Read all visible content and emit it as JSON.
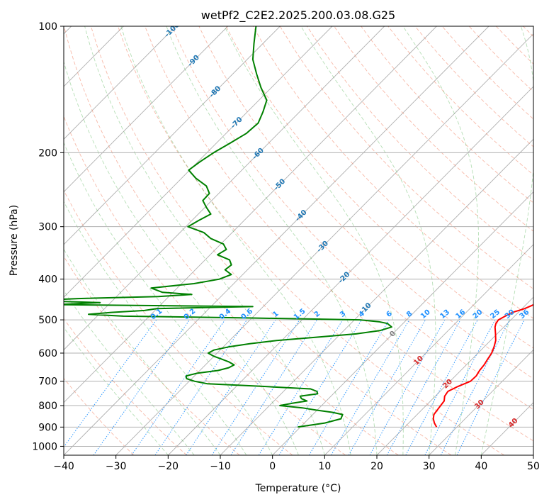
{
  "chart_data": {
    "type": "line",
    "title": "wetPf2_C2E2.2025.200.03.08.G25",
    "xlabel": "Temperature (°C)",
    "ylabel": "Pressure (hPa)",
    "xlim": [
      -40,
      50
    ],
    "ylim": [
      1050,
      100
    ],
    "y_scale": "log",
    "skew": true,
    "grid": true,
    "x_ticks": [
      -40,
      -30,
      -20,
      -10,
      0,
      10,
      20,
      30,
      40,
      50
    ],
    "y_ticks": [
      100,
      200,
      300,
      400,
      500,
      600,
      700,
      800,
      900,
      1000
    ],
    "series": [
      {
        "color": "#ff0000",
        "pressure": [
          900,
          880,
          860,
          840,
          820,
          800,
          780,
          760,
          740,
          720,
          700,
          680,
          660,
          640,
          620,
          600,
          580,
          560,
          540,
          520,
          510,
          500,
          495,
          490,
          480,
          470,
          460,
          450,
          440,
          430,
          420,
          410,
          400,
          390,
          380,
          370,
          360,
          350,
          340,
          330,
          320,
          300,
          280,
          260,
          250,
          240,
          230,
          220,
          200,
          180,
          170,
          160,
          150,
          140,
          130,
          120,
          110,
          100
        ],
        "values": [
          26.1,
          24.9,
          23.9,
          23.2,
          23.0,
          22.8,
          22.6,
          21.8,
          21.5,
          22.5,
          23.9,
          24.0,
          23.6,
          23.4,
          23.0,
          22.6,
          21.9,
          21.0,
          19.7,
          18.3,
          17.8,
          17.6,
          17.9,
          18.2,
          18.9,
          20.5,
          21.5,
          22.3,
          22.6,
          22.4,
          22.1,
          22.0,
          21.8,
          21.4,
          21.0,
          20.8,
          20.4,
          19.9,
          18.9,
          17.9,
          17.1,
          15.4,
          12.1,
          9.1,
          7.7,
          7.1,
          5.9,
          4.4,
          1.3,
          -2.6,
          -4.8,
          -6.7,
          -8.5,
          -10.4,
          -12.4,
          -15.0,
          -17.9,
          -20.8
        ]
      },
      {
        "color": "#008000",
        "pressure": [
          900,
          880,
          860,
          840,
          830,
          820,
          810,
          800,
          790,
          780,
          770,
          760,
          750,
          740,
          730,
          720,
          710,
          700,
          690,
          680,
          670,
          660,
          650,
          640,
          630,
          620,
          610,
          600,
          590,
          580,
          570,
          560,
          550,
          540,
          530,
          520,
          510,
          505,
          500,
          495,
          490,
          485,
          480,
          475,
          470,
          465,
          460,
          455,
          450,
          445,
          440,
          435,
          430,
          420,
          410,
          400,
          390,
          380,
          370,
          360,
          350,
          340,
          330,
          320,
          310,
          300,
          290,
          280,
          270,
          260,
          250,
          240,
          230,
          220,
          210,
          200,
          190,
          180,
          170,
          160,
          150,
          140,
          130,
          120,
          110,
          100
        ],
        "values": [
          -0.5,
          3.9,
          6.2,
          5.7,
          3.3,
          -0.2,
          -3.3,
          -8.0,
          -6.1,
          -3.7,
          -5.2,
          -5.9,
          -3.0,
          -3.6,
          -5.3,
          -15.0,
          -26.0,
          -29.0,
          -31.0,
          -31.6,
          -30.0,
          -26.5,
          -25.0,
          -24.5,
          -26.0,
          -28.0,
          -30.1,
          -31.7,
          -31.2,
          -29.0,
          -25.5,
          -21.0,
          -14.0,
          -7.0,
          -3.0,
          -1.5,
          -3.0,
          -5.0,
          -9.0,
          -30.0,
          -55.0,
          -62.0,
          -58.0,
          -52.0,
          -50.0,
          -32.0,
          -70.0,
          -62.0,
          -75.0,
          -67.0,
          -52.0,
          -46.0,
          -52.0,
          -55.0,
          -47.6,
          -43.6,
          -42.2,
          -44.3,
          -44.0,
          -45.3,
          -48.6,
          -47.9,
          -49.5,
          -53.0,
          -55.4,
          -59.6,
          -58.7,
          -57.6,
          -59.7,
          -61.7,
          -61.8,
          -63.8,
          -67.3,
          -70.2,
          -69.6,
          -68.7,
          -67.4,
          -66.1,
          -65.8,
          -67.0,
          -68.5,
          -72.0,
          -75.4,
          -78.9,
          -81.7,
          -84.6
        ]
      }
    ],
    "isotherm_labels": [
      -100,
      -90,
      -80,
      -70,
      -60,
      -50,
      -40,
      -30,
      -20,
      -10
    ],
    "mixing_ratio_labels": [
      "0.1",
      "0.2",
      "0.4",
      "0.6",
      "1",
      "1.5",
      "2",
      "3",
      "4",
      "6",
      "8",
      "10",
      "13",
      "16",
      "20",
      "25",
      "30",
      "36"
    ],
    "dry_adiabat_labels": [
      "0",
      "10",
      "20",
      "30",
      "40"
    ]
  },
  "colors": {
    "temperature": "#ff0000",
    "dewpoint": "#008000",
    "isotherm_label": "#1f77b4",
    "mixing_ratio": "#1e90ff",
    "dry_adiabat_label": "#d62728",
    "zero_label": "#808080"
  }
}
